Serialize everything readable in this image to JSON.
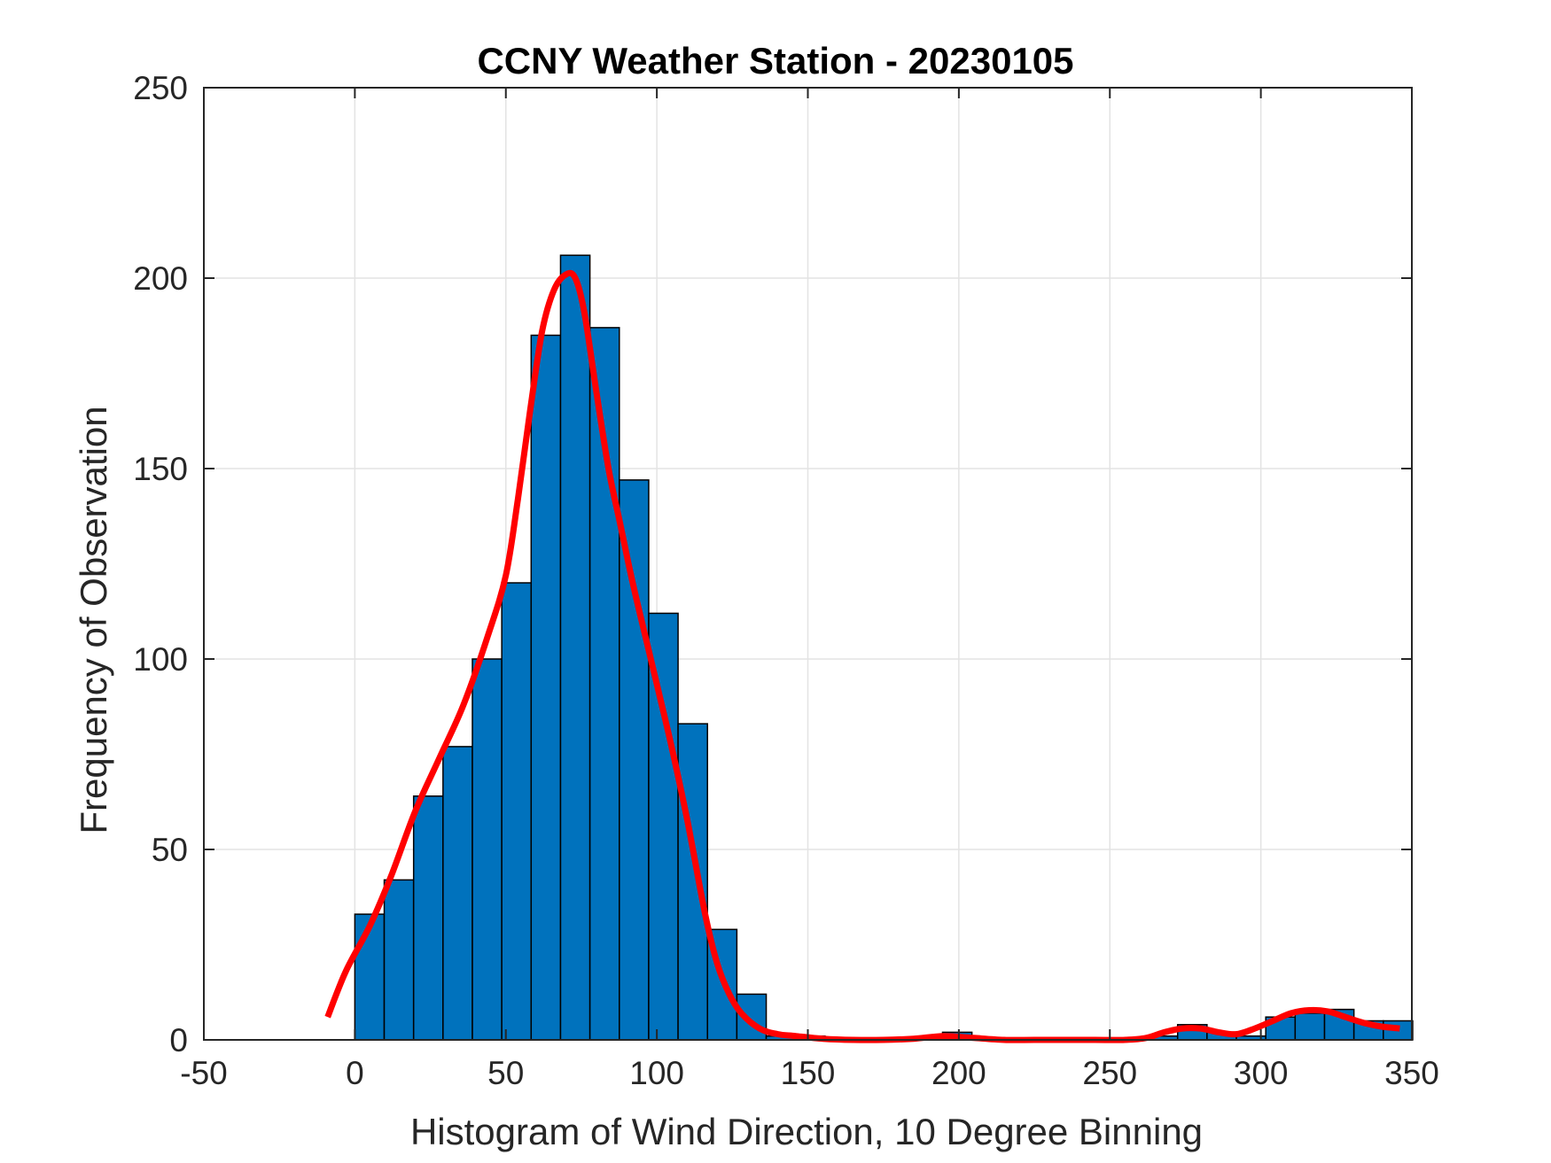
{
  "chart_data": {
    "type": "bar",
    "title": "CCNY Weather Station - 20230105",
    "xlabel": "Histogram of Wind Direction, 10 Degree Binning",
    "ylabel": "Frequency of Observation",
    "xlim": [
      -50,
      350
    ],
    "ylim": [
      0,
      250
    ],
    "x_ticks": [
      "-50",
      "0",
      "50",
      "100",
      "150",
      "200",
      "250",
      "300",
      "350"
    ],
    "y_ticks": [
      "0",
      "50",
      "100",
      "150",
      "200",
      "250"
    ],
    "grid": true,
    "bin_width": 9.73,
    "bins": [
      {
        "start": 0.0,
        "value": 33
      },
      {
        "start": 9.73,
        "value": 42
      },
      {
        "start": 19.46,
        "value": 64
      },
      {
        "start": 29.19,
        "value": 77
      },
      {
        "start": 38.92,
        "value": 100
      },
      {
        "start": 48.65,
        "value": 120
      },
      {
        "start": 58.38,
        "value": 185
      },
      {
        "start": 68.11,
        "value": 206
      },
      {
        "start": 77.84,
        "value": 187
      },
      {
        "start": 87.57,
        "value": 147
      },
      {
        "start": 97.3,
        "value": 112
      },
      {
        "start": 107.03,
        "value": 83
      },
      {
        "start": 116.76,
        "value": 29
      },
      {
        "start": 126.49,
        "value": 12
      },
      {
        "start": 136.22,
        "value": 1
      },
      {
        "start": 145.95,
        "value": 1
      },
      {
        "start": 155.68,
        "value": 0
      },
      {
        "start": 165.41,
        "value": 0
      },
      {
        "start": 175.14,
        "value": 0
      },
      {
        "start": 184.87,
        "value": 0
      },
      {
        "start": 194.6,
        "value": 2
      },
      {
        "start": 204.33,
        "value": 0
      },
      {
        "start": 214.06,
        "value": 0
      },
      {
        "start": 223.79,
        "value": 0
      },
      {
        "start": 233.52,
        "value": 0
      },
      {
        "start": 243.25,
        "value": 0
      },
      {
        "start": 252.98,
        "value": 0
      },
      {
        "start": 262.71,
        "value": 1
      },
      {
        "start": 272.44,
        "value": 4
      },
      {
        "start": 282.17,
        "value": 2
      },
      {
        "start": 291.9,
        "value": 1
      },
      {
        "start": 301.63,
        "value": 6
      },
      {
        "start": 311.36,
        "value": 7
      },
      {
        "start": 321.09,
        "value": 8
      },
      {
        "start": 330.82,
        "value": 5
      },
      {
        "start": 340.55,
        "value": 5
      }
    ],
    "series": [
      {
        "type": "line",
        "x": [
          -9,
          -3,
          5,
          12,
          20,
          28,
          36,
          44,
          50,
          54,
          58,
          62,
          66,
          70,
          73,
          76,
          80,
          84,
          88,
          92,
          98,
          104,
          110,
          116,
          120,
          124,
          128,
          134,
          140,
          146,
          155,
          165,
          175,
          185,
          195,
          205,
          215,
          225,
          235,
          245,
          255,
          262,
          268,
          274,
          280,
          286,
          292,
          298,
          304,
          310,
          316,
          322,
          328,
          334,
          340,
          346
        ],
        "y": [
          6,
          18,
          30,
          43,
          60,
          74,
          88,
          106,
          122,
          142,
          165,
          186,
          197,
          201,
          200,
          191,
          170,
          150,
          135,
          120,
          100,
          80,
          58,
          33,
          20,
          12,
          7,
          3,
          1.5,
          1,
          0.3,
          0,
          0,
          0.3,
          1,
          0.5,
          0,
          0,
          0,
          0,
          0,
          0.5,
          2,
          3,
          3,
          2,
          1.5,
          3,
          5,
          7,
          7.8,
          7.5,
          6,
          4.5,
          3.5,
          3
        ],
        "color": "#ff0000"
      }
    ],
    "bar_color": "#0072bd",
    "bar_edge_color": "#000000"
  }
}
